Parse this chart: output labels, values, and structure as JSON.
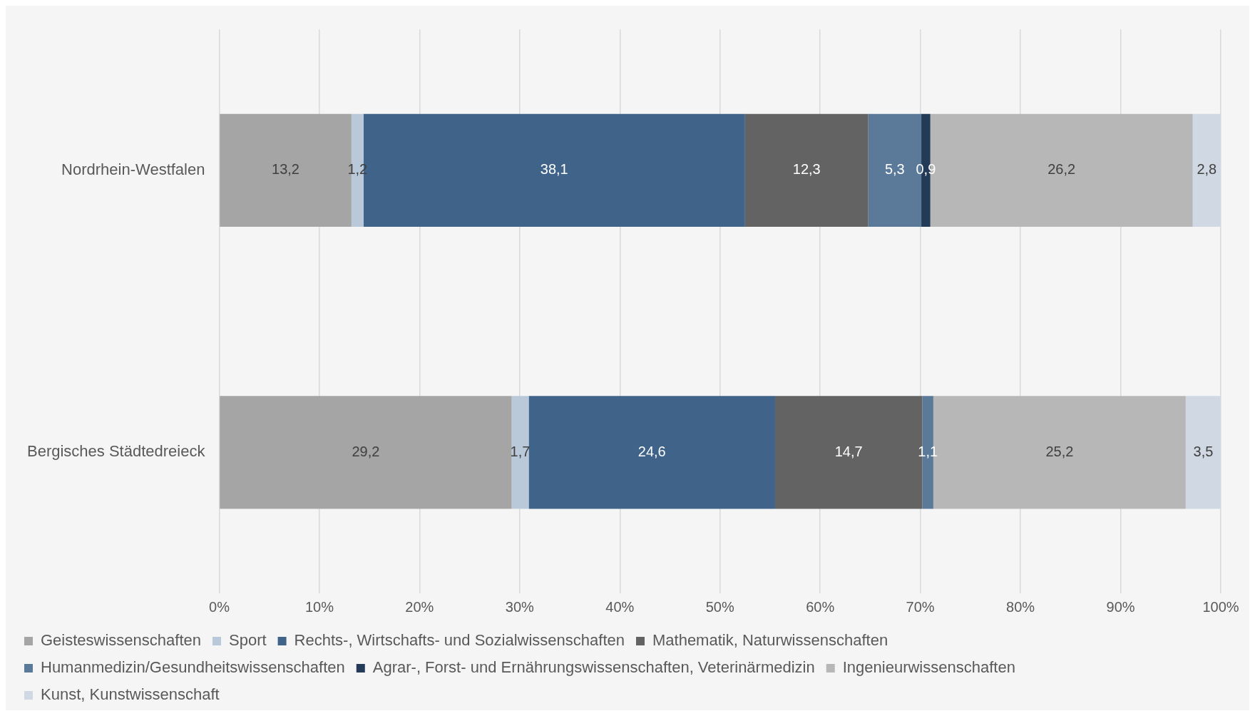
{
  "chart_data": {
    "type": "bar",
    "orientation": "horizontal",
    "stacked": true,
    "categories": [
      "Nordrhein-Westfalen",
      "Bergisches Städtedreieck"
    ],
    "series": [
      {
        "name": "Geisteswissenschaften",
        "color": "#a5a5a5",
        "values": [
          13.2,
          29.2
        ],
        "value_labels": [
          "13,2",
          "29,2"
        ]
      },
      {
        "name": "Sport",
        "color": "#b9c9da",
        "values": [
          1.2,
          1.7
        ],
        "value_labels": [
          "1,2",
          "1,7"
        ]
      },
      {
        "name": "Rechts-, Wirtschafts- und Sozialwissenschaften",
        "color": "#3f6389",
        "values": [
          38.1,
          24.6
        ],
        "value_labels": [
          "38,1",
          "24,6"
        ]
      },
      {
        "name": "Mathematik, Naturwissenschaften",
        "color": "#636363",
        "values": [
          12.3,
          14.7
        ],
        "value_labels": [
          "12,3",
          "14,7"
        ]
      },
      {
        "name": "Humanmedizin/Gesundheitswissenschaften",
        "color": "#5b7a9a",
        "values": [
          5.3,
          1.1
        ],
        "value_labels": [
          "5,3",
          "1,1"
        ]
      },
      {
        "name": "Agrar-, Forst- und Ernährungswissenschaften, Veterinärmedizin",
        "color": "#243b58",
        "values": [
          0.9,
          null
        ],
        "value_labels": [
          "0,9",
          null
        ]
      },
      {
        "name": "Ingenieurwissenschaften",
        "color": "#b7b7b7",
        "values": [
          26.2,
          25.2
        ],
        "value_labels": [
          "26,2",
          "25,2"
        ]
      },
      {
        "name": "Kunst, Kunstwissenschaft",
        "color": "#d0d9e3",
        "values": [
          2.8,
          3.5
        ],
        "value_labels": [
          "2,8",
          "3,5"
        ]
      }
    ],
    "xlim": [
      0,
      100
    ],
    "xticks": [
      {
        "value": 0,
        "label": "0%"
      },
      {
        "value": 10,
        "label": "10%"
      },
      {
        "value": 20,
        "label": "20%"
      },
      {
        "value": 30,
        "label": "30%"
      },
      {
        "value": 40,
        "label": "40%"
      },
      {
        "value": 50,
        "label": "50%"
      },
      {
        "value": 60,
        "label": "60%"
      },
      {
        "value": 70,
        "label": "70%"
      },
      {
        "value": 80,
        "label": "80%"
      },
      {
        "value": 90,
        "label": "90%"
      },
      {
        "value": 100,
        "label": "100%"
      }
    ],
    "grid": "x",
    "legend": "bottom"
  }
}
